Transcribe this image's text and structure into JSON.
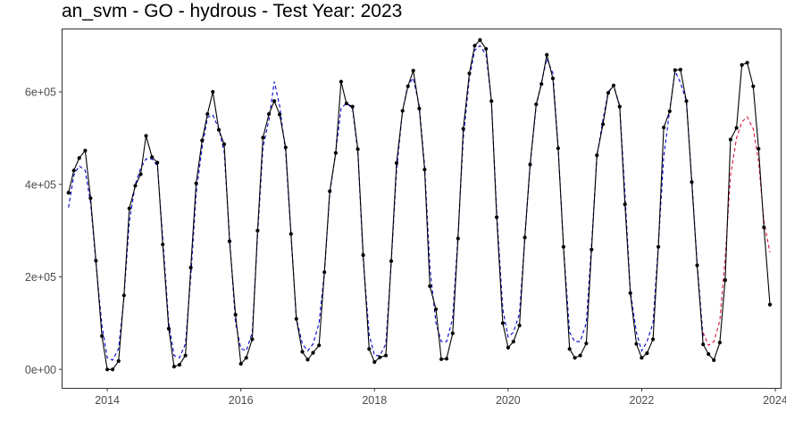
{
  "chart_data": {
    "type": "line",
    "title": "an_svm - GO - hydrous - Test Year: 2023",
    "xlabel": "",
    "ylabel": "",
    "x_range": [
      2013.33,
      2024.08
    ],
    "ylim": [
      -40000,
      735000
    ],
    "x_ticks": [
      {
        "value": 2014,
        "label": "2014"
      },
      {
        "value": 2016,
        "label": "2016"
      },
      {
        "value": 2018,
        "label": "2018"
      },
      {
        "value": 2020,
        "label": "2020"
      },
      {
        "value": 2022,
        "label": "2022"
      },
      {
        "value": 2024,
        "label": "2024"
      }
    ],
    "y_ticks": [
      {
        "value": 0,
        "label": "0e+00"
      },
      {
        "value": 200000,
        "label": "2e+05"
      },
      {
        "value": 400000,
        "label": "4e+05"
      },
      {
        "value": 600000,
        "label": "6e+05"
      }
    ],
    "grid": false,
    "legend": "none",
    "series": [
      {
        "role": "actual",
        "color": "#000000",
        "style": "solid",
        "markers": true,
        "x": [
          2013.42,
          2013.5,
          2013.58,
          2013.67,
          2013.75,
          2013.83,
          2013.92,
          2014.0,
          2014.08,
          2014.17,
          2014.25,
          2014.33,
          2014.42,
          2014.5,
          2014.58,
          2014.67,
          2014.75,
          2014.83,
          2014.92,
          2015.0,
          2015.08,
          2015.17,
          2015.25,
          2015.33,
          2015.42,
          2015.5,
          2015.58,
          2015.67,
          2015.75,
          2015.83,
          2015.92,
          2016.0,
          2016.08,
          2016.17,
          2016.25,
          2016.33,
          2016.42,
          2016.5,
          2016.58,
          2016.67,
          2016.75,
          2016.83,
          2016.92,
          2017.0,
          2017.08,
          2017.17,
          2017.25,
          2017.33,
          2017.42,
          2017.5,
          2017.58,
          2017.67,
          2017.75,
          2017.83,
          2017.92,
          2018.0,
          2018.08,
          2018.17,
          2018.25,
          2018.33,
          2018.42,
          2018.5,
          2018.58,
          2018.67,
          2018.75,
          2018.83,
          2018.92,
          2019.0,
          2019.08,
          2019.17,
          2019.25,
          2019.33,
          2019.42,
          2019.5,
          2019.58,
          2019.67,
          2019.75,
          2019.83,
          2019.92,
          2020.0,
          2020.08,
          2020.17,
          2020.25,
          2020.33,
          2020.42,
          2020.5,
          2020.58,
          2020.67,
          2020.75,
          2020.83,
          2020.92,
          2021.0,
          2021.08,
          2021.17,
          2021.25,
          2021.33,
          2021.42,
          2021.5,
          2021.58,
          2021.67,
          2021.75,
          2021.83,
          2021.92,
          2022.0,
          2022.08,
          2022.17,
          2022.25,
          2022.33,
          2022.42,
          2022.5,
          2022.58,
          2022.67,
          2022.75,
          2022.83,
          2022.92,
          2023.0,
          2023.08,
          2023.17,
          2023.25,
          2023.33,
          2023.42,
          2023.5,
          2023.58,
          2023.67,
          2023.75,
          2023.83,
          2023.92
        ],
        "y": [
          382000,
          430000,
          457000,
          473000,
          370000,
          235000,
          72000,
          0,
          0,
          18000,
          160000,
          348000,
          397000,
          422000,
          505000,
          459000,
          447000,
          270000,
          88000,
          6000,
          10000,
          30000,
          220000,
          402000,
          495000,
          552000,
          600000,
          518000,
          487000,
          277000,
          118000,
          12000,
          25000,
          65000,
          300000,
          501000,
          552000,
          580000,
          551000,
          480000,
          293000,
          109000,
          38000,
          21000,
          36000,
          52000,
          210000,
          385000,
          468000,
          622000,
          575000,
          568000,
          476000,
          247000,
          44000,
          16000,
          26000,
          30000,
          234000,
          446000,
          559000,
          612000,
          646000,
          564000,
          432000,
          180000,
          130000,
          22000,
          23000,
          78000,
          283000,
          520000,
          640000,
          700000,
          712000,
          693000,
          580000,
          329000,
          100000,
          47000,
          60000,
          95000,
          285000,
          443000,
          573000,
          617000,
          680000,
          629000,
          478000,
          265000,
          44000,
          25000,
          30000,
          56000,
          259000,
          463000,
          530000,
          598000,
          614000,
          568000,
          357000,
          165000,
          55000,
          25000,
          35000,
          65000,
          265000,
          523000,
          558000,
          647000,
          648000,
          580000,
          405000,
          225000,
          54000,
          33000,
          20000,
          58000,
          193000,
          497000,
          522000,
          658000,
          663000,
          612000,
          477000,
          307000,
          140000
        ]
      },
      {
        "role": "fitted",
        "color": "#0000cd",
        "style": "dashed",
        "markers": false,
        "x": [
          2013.42,
          2013.5,
          2013.58,
          2013.67,
          2013.75,
          2013.83,
          2013.92,
          2014.0,
          2014.08,
          2014.17,
          2014.25,
          2014.33,
          2014.42,
          2014.5,
          2014.58,
          2014.67,
          2014.75,
          2014.83,
          2014.92,
          2015.0,
          2015.08,
          2015.17,
          2015.25,
          2015.33,
          2015.42,
          2015.5,
          2015.58,
          2015.67,
          2015.75,
          2015.83,
          2015.92,
          2016.0,
          2016.08,
          2016.17,
          2016.25,
          2016.33,
          2016.42,
          2016.5,
          2016.58,
          2016.67,
          2016.75,
          2016.83,
          2016.92,
          2017.0,
          2017.08,
          2017.17,
          2017.25,
          2017.33,
          2017.42,
          2017.5,
          2017.58,
          2017.67,
          2017.75,
          2017.83,
          2017.92,
          2018.0,
          2018.08,
          2018.17,
          2018.25,
          2018.33,
          2018.42,
          2018.5,
          2018.58,
          2018.67,
          2018.75,
          2018.83,
          2018.92,
          2019.0,
          2019.08,
          2019.17,
          2019.25,
          2019.33,
          2019.42,
          2019.5,
          2019.58,
          2019.67,
          2019.75,
          2019.83,
          2019.92,
          2020.0,
          2020.08,
          2020.17,
          2020.25,
          2020.33,
          2020.42,
          2020.5,
          2020.58,
          2020.67,
          2020.75,
          2020.83,
          2020.92,
          2021.0,
          2021.08,
          2021.17,
          2021.25,
          2021.33,
          2021.42,
          2021.5,
          2021.58,
          2021.67,
          2021.75,
          2021.83,
          2021.92,
          2022.0,
          2022.08,
          2022.17,
          2022.25,
          2022.33,
          2022.42,
          2022.5,
          2022.58,
          2022.67,
          2022.75,
          2022.83,
          2022.92
        ],
        "y": [
          350000,
          420000,
          440000,
          430000,
          360000,
          230000,
          95000,
          25000,
          20000,
          45000,
          155000,
          320000,
          400000,
          435000,
          455000,
          455000,
          440000,
          285000,
          100000,
          30000,
          25000,
          55000,
          200000,
          380000,
          480000,
          545000,
          550000,
          520000,
          470000,
          285000,
          100000,
          45000,
          40000,
          80000,
          290000,
          480000,
          540000,
          622000,
          570000,
          470000,
          290000,
          110000,
          55000,
          40000,
          55000,
          100000,
          210000,
          380000,
          470000,
          565000,
          575000,
          565000,
          470000,
          240000,
          75000,
          30000,
          30000,
          55000,
          230000,
          430000,
          560000,
          615000,
          630000,
          570000,
          440000,
          220000,
          100000,
          60000,
          60000,
          110000,
          290000,
          500000,
          630000,
          690000,
          700000,
          680000,
          580000,
          340000,
          130000,
          70000,
          80000,
          120000,
          285000,
          440000,
          570000,
          620000,
          672000,
          640000,
          480000,
          265000,
          80000,
          60000,
          60000,
          100000,
          270000,
          460000,
          540000,
          600000,
          614000,
          570000,
          380000,
          170000,
          80000,
          40000,
          60000,
          100000,
          270000,
          460000,
          560000,
          645000,
          620000,
          580000,
          410000,
          230000,
          70000
        ]
      },
      {
        "role": "forecast",
        "color": "#dc143c",
        "style": "dashed",
        "markers": false,
        "x": [
          2022.92,
          2023.0,
          2023.08,
          2023.17,
          2023.25,
          2023.33,
          2023.42,
          2023.5,
          2023.58,
          2023.67,
          2023.75,
          2023.83,
          2023.92
        ],
        "y": [
          80000,
          52000,
          60000,
          105000,
          240000,
          420000,
          500000,
          535000,
          546000,
          520000,
          450000,
          320000,
          253000
        ]
      }
    ]
  }
}
